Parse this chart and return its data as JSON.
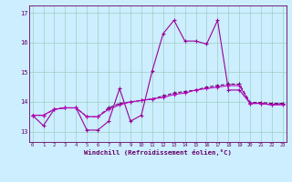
{
  "x": [
    0,
    1,
    2,
    3,
    4,
    5,
    6,
    7,
    8,
    9,
    10,
    11,
    12,
    13,
    14,
    15,
    16,
    17,
    18,
    19,
    20,
    21,
    22,
    23
  ],
  "line1_temp": [
    13.55,
    13.2,
    13.75,
    13.8,
    13.8,
    13.05,
    13.05,
    13.35,
    14.45,
    13.35,
    13.55,
    15.05,
    16.3,
    16.75,
    16.05,
    16.05,
    15.95,
    16.75,
    14.4,
    14.4,
    13.95,
    13.95,
    13.9,
    13.95
  ],
  "line2_temp": [
    13.55,
    13.55,
    13.75,
    13.8,
    13.8,
    13.5,
    13.5,
    13.75,
    13.9,
    14.0,
    14.05,
    14.1,
    14.15,
    14.25,
    14.3,
    14.4,
    14.45,
    14.5,
    14.55,
    14.55,
    13.95,
    13.95,
    13.9,
    13.9
  ],
  "line3_temp": [
    13.55,
    13.55,
    13.75,
    13.8,
    13.8,
    13.5,
    13.5,
    13.8,
    13.95,
    14.0,
    14.05,
    14.1,
    14.2,
    14.3,
    14.35,
    14.4,
    14.5,
    14.55,
    14.6,
    14.6,
    13.98,
    13.98,
    13.95,
    13.95
  ],
  "line_color1": "#990099",
  "line_color2": "#660066",
  "line_color3": "#bb00bb",
  "bg_color": "#cceeff",
  "grid_color": "#99ccbb",
  "tick_color": "#660066",
  "label_color": "#660066",
  "xlabel": "Windchill (Refroidissement éolien,°C)",
  "yticks": [
    13,
    14,
    15,
    16,
    17
  ],
  "xticks": [
    0,
    1,
    2,
    3,
    4,
    5,
    6,
    7,
    8,
    9,
    10,
    11,
    12,
    13,
    14,
    15,
    16,
    17,
    18,
    19,
    20,
    21,
    22,
    23
  ],
  "ylim": [
    12.65,
    17.25
  ],
  "xlim": [
    -0.3,
    23.3
  ]
}
